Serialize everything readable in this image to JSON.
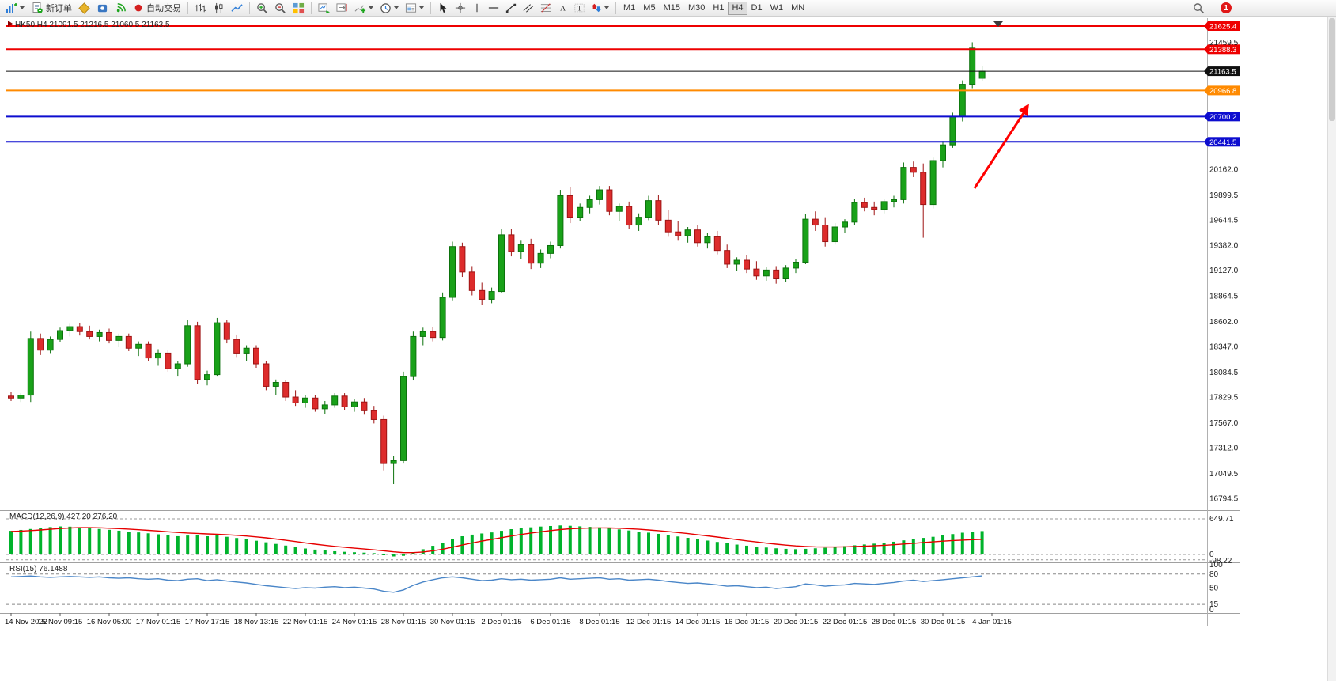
{
  "toolbar": {
    "new_order": "新订单",
    "auto_trading": "自动交易",
    "timeframes": [
      "M1",
      "M5",
      "M15",
      "M30",
      "H1",
      "H4",
      "D1",
      "W1",
      "MN"
    ],
    "active_timeframe": "H4",
    "notification_count": "1"
  },
  "chart": {
    "header": {
      "symbol_period": "HK50,H4",
      "ohlc": "21091.5 21216.5 21060.5 21163.5"
    },
    "price_axis": {
      "plain_labels": [
        21459.5,
        20162.0,
        19899.5,
        19644.5,
        19382.0,
        19127.0,
        18864.5,
        18602.0,
        18347.0,
        18084.5,
        17829.5,
        17567.0,
        17312.0,
        17049.5,
        16794.5
      ],
      "badges": [
        {
          "value": "21625.4",
          "price": 21625.4,
          "color": "#ee0000",
          "type": "resistance-line"
        },
        {
          "value": "21388.3",
          "price": 21388.3,
          "color": "#ee0000",
          "type": "resistance-line"
        },
        {
          "value": "21163.5",
          "price": 21163.5,
          "color": "#101010",
          "type": "current-price"
        },
        {
          "value": "20966.8",
          "price": 20966.8,
          "color": "#ff8a00",
          "type": "level-line"
        },
        {
          "value": "20700.2",
          "price": 20700.2,
          "color": "#0d0dcf",
          "type": "support-line"
        },
        {
          "value": "20441.5",
          "price": 20441.5,
          "color": "#0d0dcf",
          "type": "support-line"
        }
      ]
    },
    "time_axis": [
      "14 Nov 2022",
      "15 Nov 09:15",
      "16 Nov 05:00",
      "17 Nov 01:15",
      "17 Nov 17:15",
      "18 Nov 13:15",
      "22 Nov 01:15",
      "24 Nov 01:15",
      "28 Nov 01:15",
      "30 Nov 01:15",
      "2 Dec 01:15",
      "6 Dec 01:15",
      "8 Dec 01:15",
      "12 Dec 01:15",
      "14 Dec 01:15",
      "16 Dec 01:15",
      "20 Dec 01:15",
      "22 Dec 01:15",
      "28 Dec 01:15",
      "30 Dec 01:15",
      "4 Jan 01:15"
    ]
  },
  "indicators": {
    "macd": {
      "label": "MACD(12,26,9)",
      "values": "427.20 276.20",
      "scale": [
        "649.71",
        "0",
        "-98.22"
      ]
    },
    "rsi": {
      "label": "RSI(15)",
      "value": "76.1488",
      "scale": [
        "100",
        "80",
        "50",
        "15",
        "0"
      ]
    }
  },
  "chart_data": {
    "type": "candlestick",
    "symbol": "HK50",
    "period": "H4",
    "ylim": [
      16794.5,
      21625.4
    ],
    "levels": [
      21625.4,
      21388.3,
      21163.5,
      20966.8,
      20700.2,
      20441.5
    ],
    "last_bar_ohlc": [
      21091.5,
      21216.5,
      21060.5,
      21163.5
    ],
    "ohlc_format": [
      "open",
      "high",
      "low",
      "close"
    ],
    "candles": [
      [
        17840,
        17880,
        17790,
        17820
      ],
      [
        17820,
        17870,
        17780,
        17850
      ],
      [
        17850,
        18500,
        17780,
        18430
      ],
      [
        18430,
        18480,
        18260,
        18310
      ],
      [
        18310,
        18450,
        18280,
        18420
      ],
      [
        18420,
        18540,
        18390,
        18510
      ],
      [
        18510,
        18580,
        18450,
        18550
      ],
      [
        18550,
        18590,
        18460,
        18500
      ],
      [
        18500,
        18560,
        18420,
        18450
      ],
      [
        18450,
        18520,
        18400,
        18490
      ],
      [
        18490,
        18530,
        18380,
        18410
      ],
      [
        18410,
        18480,
        18340,
        18450
      ],
      [
        18450,
        18480,
        18300,
        18330
      ],
      [
        18330,
        18400,
        18250,
        18370
      ],
      [
        18370,
        18400,
        18200,
        18230
      ],
      [
        18230,
        18320,
        18150,
        18280
      ],
      [
        18280,
        18310,
        18090,
        18120
      ],
      [
        18120,
        18200,
        18040,
        18170
      ],
      [
        18170,
        18620,
        18140,
        18560
      ],
      [
        18560,
        18600,
        17960,
        18010
      ],
      [
        18010,
        18100,
        17950,
        18060
      ],
      [
        18060,
        18640,
        18040,
        18590
      ],
      [
        18590,
        18620,
        18380,
        18420
      ],
      [
        18420,
        18470,
        18240,
        18280
      ],
      [
        18280,
        18360,
        18200,
        18330
      ],
      [
        18330,
        18360,
        18130,
        18170
      ],
      [
        18170,
        18200,
        17900,
        17940
      ],
      [
        17940,
        18010,
        17850,
        17980
      ],
      [
        17980,
        18000,
        17790,
        17830
      ],
      [
        17830,
        17900,
        17740,
        17770
      ],
      [
        17770,
        17850,
        17720,
        17820
      ],
      [
        17820,
        17850,
        17680,
        17710
      ],
      [
        17710,
        17790,
        17660,
        17750
      ],
      [
        17750,
        17870,
        17720,
        17840
      ],
      [
        17840,
        17870,
        17700,
        17730
      ],
      [
        17730,
        17810,
        17680,
        17780
      ],
      [
        17780,
        17820,
        17650,
        17690
      ],
      [
        17690,
        17740,
        17560,
        17600
      ],
      [
        17600,
        17640,
        17080,
        17150
      ],
      [
        17150,
        17230,
        16940,
        17180
      ],
      [
        17180,
        18090,
        17150,
        18040
      ],
      [
        18040,
        18500,
        18000,
        18450
      ],
      [
        18450,
        18540,
        18360,
        18500
      ],
      [
        18500,
        18550,
        18400,
        18440
      ],
      [
        18440,
        18900,
        18410,
        18850
      ],
      [
        18850,
        19420,
        18820,
        19370
      ],
      [
        19370,
        19410,
        19060,
        19110
      ],
      [
        19110,
        19170,
        18870,
        18920
      ],
      [
        18920,
        19000,
        18770,
        18830
      ],
      [
        18830,
        18950,
        18790,
        18910
      ],
      [
        18910,
        19550,
        18890,
        19490
      ],
      [
        19490,
        19550,
        19270,
        19320
      ],
      [
        19320,
        19430,
        19240,
        19390
      ],
      [
        19390,
        19450,
        19140,
        19200
      ],
      [
        19200,
        19340,
        19150,
        19300
      ],
      [
        19300,
        19420,
        19250,
        19380
      ],
      [
        19380,
        19950,
        19350,
        19890
      ],
      [
        19890,
        19980,
        19610,
        19670
      ],
      [
        19670,
        19810,
        19630,
        19770
      ],
      [
        19770,
        19890,
        19710,
        19850
      ],
      [
        19850,
        19990,
        19800,
        19950
      ],
      [
        19950,
        19990,
        19690,
        19730
      ],
      [
        19730,
        19810,
        19630,
        19780
      ],
      [
        19780,
        19830,
        19550,
        19590
      ],
      [
        19590,
        19710,
        19530,
        19670
      ],
      [
        19670,
        19890,
        19640,
        19840
      ],
      [
        19840,
        19900,
        19590,
        19640
      ],
      [
        19640,
        19740,
        19470,
        19520
      ],
      [
        19520,
        19630,
        19430,
        19480
      ],
      [
        19480,
        19570,
        19410,
        19540
      ],
      [
        19540,
        19590,
        19370,
        19410
      ],
      [
        19410,
        19510,
        19350,
        19470
      ],
      [
        19470,
        19530,
        19290,
        19330
      ],
      [
        19330,
        19390,
        19150,
        19190
      ],
      [
        19190,
        19260,
        19120,
        19230
      ],
      [
        19230,
        19280,
        19100,
        19140
      ],
      [
        19140,
        19220,
        19030,
        19070
      ],
      [
        19070,
        19160,
        19020,
        19130
      ],
      [
        19130,
        19170,
        18990,
        19040
      ],
      [
        19040,
        19180,
        19010,
        19150
      ],
      [
        19150,
        19240,
        19100,
        19210
      ],
      [
        19210,
        19700,
        19190,
        19650
      ],
      [
        19650,
        19730,
        19530,
        19590
      ],
      [
        19590,
        19670,
        19370,
        19420
      ],
      [
        19420,
        19610,
        19390,
        19570
      ],
      [
        19570,
        19650,
        19510,
        19620
      ],
      [
        19620,
        19860,
        19590,
        19820
      ],
      [
        19820,
        19870,
        19730,
        19770
      ],
      [
        19770,
        19830,
        19690,
        19750
      ],
      [
        19750,
        19860,
        19710,
        19830
      ],
      [
        19830,
        19890,
        19770,
        19850
      ],
      [
        19850,
        20230,
        19810,
        20180
      ],
      [
        20180,
        20240,
        20080,
        20130
      ],
      [
        20130,
        20220,
        19460,
        19800
      ],
      [
        19800,
        20280,
        19760,
        20250
      ],
      [
        20250,
        20450,
        20180,
        20410
      ],
      [
        20410,
        20740,
        20380,
        20700
      ],
      [
        20700,
        21070,
        20650,
        21030
      ],
      [
        21030,
        21460,
        20990,
        21400
      ],
      [
        21091.5,
        21216.5,
        21060.5,
        21163.5
      ]
    ],
    "macd_main": [
      432,
      448,
      465,
      482,
      500,
      512,
      508,
      496,
      482,
      466,
      450,
      434,
      418,
      402,
      386,
      368,
      350,
      333,
      345,
      358,
      332,
      348,
      322,
      300,
      276,
      250,
      222,
      192,
      162,
      134,
      108,
      88,
      72,
      58,
      48,
      40,
      33,
      24,
      -8,
      -36,
      -25,
      35,
      95,
      158,
      215,
      282,
      332,
      362,
      383,
      402,
      432,
      462,
      482,
      496,
      510,
      520,
      530,
      524,
      514,
      504,
      494,
      478,
      458,
      438,
      418,
      398,
      376,
      352,
      328,
      303,
      278,
      253,
      228,
      204,
      180,
      160,
      142,
      126,
      112,
      102,
      96,
      102,
      112,
      122,
      136,
      152,
      167,
      182,
      197,
      212,
      232,
      257,
      286,
      302,
      322,
      347,
      372,
      397,
      416,
      427.2
    ],
    "macd_signal": [
      420,
      427,
      436,
      448,
      461,
      474,
      484,
      489,
      489,
      486,
      480,
      472,
      463,
      452,
      441,
      429,
      415,
      401,
      391,
      384,
      375,
      369,
      360,
      349,
      336,
      321,
      303,
      282,
      259,
      235,
      211,
      188,
      167,
      148,
      131,
      114,
      99,
      84,
      67,
      47,
      33,
      33,
      45,
      67,
      96,
      133,
      172,
      210,
      244,
      275,
      306,
      337,
      366,
      392,
      415,
      436,
      455,
      469,
      478,
      483,
      485,
      484,
      479,
      471,
      461,
      448,
      434,
      418,
      400,
      381,
      360,
      339,
      317,
      294,
      271,
      249,
      228,
      207,
      188,
      171,
      156,
      146,
      139,
      136,
      136,
      139,
      144,
      150,
      158,
      168,
      178,
      190,
      203,
      216,
      229,
      242,
      254,
      262,
      270,
      276.2
    ],
    "rsi": [
      74,
      75,
      76,
      74,
      73,
      74,
      75,
      74,
      73,
      74,
      72,
      71,
      72,
      70,
      69,
      70,
      67,
      66,
      69,
      70,
      66,
      68,
      65,
      63,
      61,
      58,
      55,
      53,
      51,
      49,
      51,
      50,
      52,
      53,
      51,
      52,
      50,
      48,
      43,
      41,
      46,
      56,
      63,
      68,
      72,
      74,
      72,
      69,
      66,
      67,
      70,
      68,
      69,
      67,
      68,
      69,
      72,
      69,
      70,
      71,
      72,
      69,
      70,
      67,
      68,
      69,
      67,
      64,
      62,
      60,
      61,
      59,
      57,
      54,
      55,
      53,
      51,
      52,
      49,
      51,
      53,
      59,
      57,
      54,
      56,
      57,
      60,
      59,
      58,
      60,
      62,
      65,
      67,
      64,
      66,
      68,
      70,
      72,
      74,
      76.1
    ]
  },
  "annotations": {
    "arrow_color": "#ff0000"
  }
}
